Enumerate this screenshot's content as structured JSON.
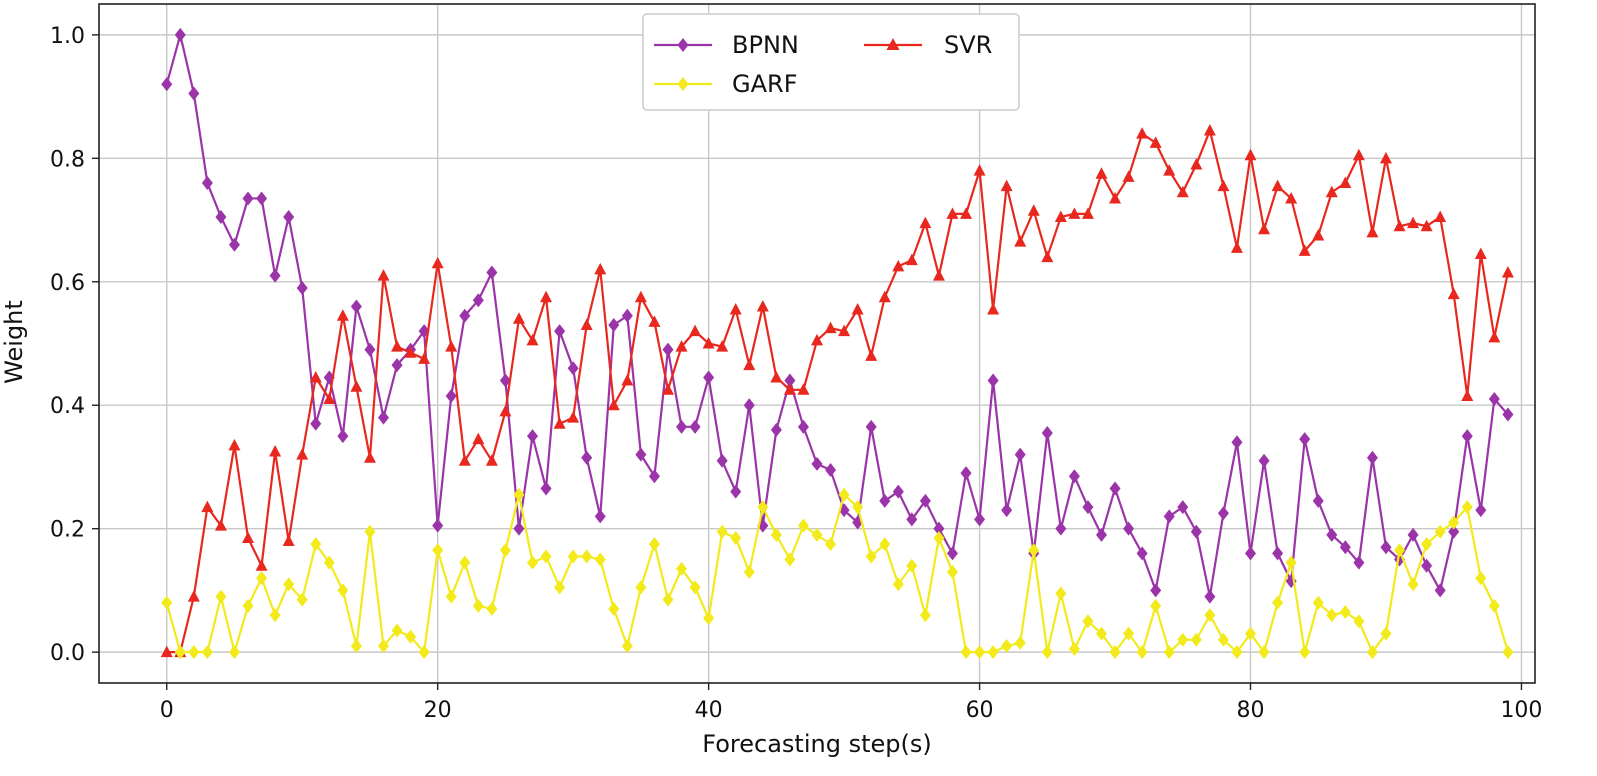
{
  "chart_data": {
    "type": "line",
    "title": "",
    "xlabel": "Forecasting step(s)",
    "ylabel": "Weight",
    "xlim": [
      -5,
      101
    ],
    "ylim": [
      -0.05,
      1.05
    ],
    "xticks": [
      0,
      20,
      40,
      60,
      80,
      100
    ],
    "yticks": [
      0.0,
      0.2,
      0.4,
      0.6,
      0.8,
      1.0
    ],
    "xtick_labels": [
      "0",
      "20",
      "40",
      "60",
      "80",
      "100"
    ],
    "ytick_labels": [
      "0.0",
      "0.2",
      "0.4",
      "0.6",
      "0.8",
      "1.0"
    ],
    "grid": true,
    "legend_position": "top-center",
    "x": [
      0,
      1,
      2,
      3,
      4,
      5,
      6,
      7,
      8,
      9,
      10,
      11,
      12,
      13,
      14,
      15,
      16,
      17,
      18,
      19,
      20,
      21,
      22,
      23,
      24,
      25,
      26,
      27,
      28,
      29,
      30,
      31,
      32,
      33,
      34,
      35,
      36,
      37,
      38,
      39,
      40,
      41,
      42,
      43,
      44,
      45,
      46,
      47,
      48,
      49,
      50,
      51,
      52,
      53,
      54,
      55,
      56,
      57,
      58,
      59,
      60,
      61,
      62,
      63,
      64,
      65,
      66,
      67,
      68,
      69,
      70,
      71,
      72,
      73,
      74,
      75,
      76,
      77,
      78,
      79,
      80,
      81,
      82,
      83,
      84,
      85,
      86,
      87,
      88,
      89,
      90,
      91,
      92,
      93,
      94,
      95,
      96,
      97,
      98,
      99
    ],
    "series": [
      {
        "name": "BPNN",
        "color": "#9b34a8",
        "marker": "diamond",
        "values": [
          0.92,
          1.0,
          0.905,
          0.76,
          0.705,
          0.66,
          0.735,
          0.735,
          0.61,
          0.705,
          0.59,
          0.37,
          0.445,
          0.35,
          0.56,
          0.49,
          0.38,
          0.465,
          0.49,
          0.52,
          0.205,
          0.415,
          0.545,
          0.57,
          0.615,
          0.44,
          0.2,
          0.35,
          0.265,
          0.52,
          0.46,
          0.315,
          0.22,
          0.53,
          0.545,
          0.32,
          0.285,
          0.49,
          0.365,
          0.365,
          0.445,
          0.31,
          0.26,
          0.4,
          0.205,
          0.36,
          0.44,
          0.365,
          0.305,
          0.295,
          0.23,
          0.21,
          0.365,
          0.245,
          0.26,
          0.215,
          0.245,
          0.2,
          0.16,
          0.29,
          0.215,
          0.44,
          0.23,
          0.32,
          0.16,
          0.355,
          0.2,
          0.285,
          0.235,
          0.19,
          0.265,
          0.2,
          0.16,
          0.1,
          0.22,
          0.235,
          0.195,
          0.09,
          0.225,
          0.34,
          0.16,
          0.31,
          0.16,
          0.115,
          0.345,
          0.245,
          0.19,
          0.17,
          0.145,
          0.315,
          0.17,
          0.15,
          0.19,
          0.14,
          0.1,
          0.195,
          0.35,
          0.23,
          0.41,
          0.385
        ]
      },
      {
        "name": "SVR",
        "color": "#e8281e",
        "marker": "triangle",
        "values": [
          0.0,
          0.0,
          0.09,
          0.235,
          0.205,
          0.335,
          0.185,
          0.14,
          0.325,
          0.18,
          0.32,
          0.445,
          0.41,
          0.545,
          0.43,
          0.315,
          0.61,
          0.495,
          0.485,
          0.475,
          0.63,
          0.495,
          0.31,
          0.345,
          0.31,
          0.39,
          0.54,
          0.505,
          0.575,
          0.37,
          0.38,
          0.53,
          0.62,
          0.4,
          0.44,
          0.575,
          0.535,
          0.425,
          0.495,
          0.52,
          0.5,
          0.495,
          0.555,
          0.465,
          0.56,
          0.445,
          0.425,
          0.425,
          0.505,
          0.525,
          0.52,
          0.555,
          0.48,
          0.575,
          0.625,
          0.635,
          0.695,
          0.61,
          0.71,
          0.71,
          0.78,
          0.555,
          0.755,
          0.665,
          0.715,
          0.64,
          0.705,
          0.71,
          0.71,
          0.775,
          0.735,
          0.77,
          0.84,
          0.825,
          0.78,
          0.745,
          0.79,
          0.845,
          0.755,
          0.655,
          0.805,
          0.685,
          0.755,
          0.735,
          0.65,
          0.675,
          0.745,
          0.76,
          0.805,
          0.68,
          0.8,
          0.69,
          0.695,
          0.69,
          0.705,
          0.58,
          0.415,
          0.645,
          0.51,
          0.615
        ]
      },
      {
        "name": "GARF",
        "color": "#f2ea1a",
        "marker": "diamond",
        "values": [
          0.08,
          0.0,
          0.0,
          0.0,
          0.09,
          0.0,
          0.075,
          0.12,
          0.06,
          0.11,
          0.085,
          0.175,
          0.145,
          0.1,
          0.01,
          0.195,
          0.01,
          0.035,
          0.025,
          0.0,
          0.165,
          0.09,
          0.145,
          0.075,
          0.07,
          0.165,
          0.255,
          0.145,
          0.155,
          0.105,
          0.155,
          0.155,
          0.15,
          0.07,
          0.01,
          0.105,
          0.175,
          0.085,
          0.135,
          0.105,
          0.055,
          0.195,
          0.185,
          0.13,
          0.235,
          0.19,
          0.15,
          0.205,
          0.19,
          0.175,
          0.255,
          0.235,
          0.155,
          0.175,
          0.11,
          0.14,
          0.06,
          0.185,
          0.13,
          0.0,
          0.0,
          0.0,
          0.01,
          0.015,
          0.165,
          0.0,
          0.095,
          0.005,
          0.05,
          0.03,
          0.0,
          0.03,
          0.0,
          0.075,
          0.0,
          0.02,
          0.02,
          0.06,
          0.02,
          0.0,
          0.03,
          0.0,
          0.08,
          0.145,
          0.0,
          0.08,
          0.06,
          0.065,
          0.05,
          0.0,
          0.03,
          0.165,
          0.11,
          0.175,
          0.195,
          0.21,
          0.235,
          0.12,
          0.075,
          0.0
        ]
      }
    ]
  }
}
